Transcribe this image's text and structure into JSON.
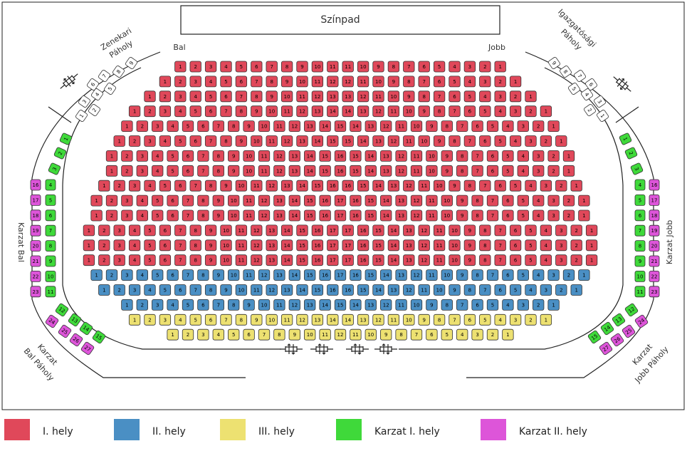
{
  "labels": {
    "stage": "Színpad",
    "left": "Bal",
    "right": "Jobb",
    "zenekari_1": "Zenekari",
    "zenekari_2": "Páholy",
    "igazgatosagi_1": "Igazgatósági",
    "igazgatosagi_2": "Páholy",
    "karzat_bal": "Karzat Bal",
    "karzat_jobb": "Karzat Jobb",
    "karzat_bal_paholy_1": "Karzat",
    "karzat_bal_paholy_2": "Bal Páholy",
    "karzat_jobb_paholy_1": "Karzat",
    "karzat_jobb_paholy_2": "Jobb Páholy"
  },
  "colors": {
    "cat1": "#e0485a",
    "cat2": "#4a8fc4",
    "cat3": "#ede171",
    "karzat1": "#3fd93a",
    "karzat2": "#dd55d9",
    "box": "#ffffff"
  },
  "legend": [
    {
      "label": "I. hely",
      "color": "#e0485a"
    },
    {
      "label": "II. hely",
      "color": "#4a8fc4"
    },
    {
      "label": "III. hely",
      "color": "#ede171"
    },
    {
      "label": "Karzat I. hely",
      "color": "#3fd93a"
    },
    {
      "label": "Karzat II. hely",
      "color": "#dd55d9"
    }
  ],
  "main_rows": [
    {
      "category": "cat1",
      "seats": 22
    },
    {
      "category": "cat1",
      "seats": 24
    },
    {
      "category": "cat1",
      "seats": 26
    },
    {
      "category": "cat1",
      "seats": 28
    },
    {
      "category": "cat1",
      "seats": 29
    },
    {
      "category": "cat1",
      "seats": 30
    },
    {
      "category": "cat1",
      "seats": 31
    },
    {
      "category": "cat1",
      "seats": 31
    },
    {
      "category": "cat1",
      "seats": 32
    },
    {
      "category": "cat1",
      "seats": 33
    },
    {
      "category": "cat1",
      "seats": 33
    },
    {
      "category": "cat1",
      "seats": 34
    },
    {
      "category": "cat1",
      "seats": 34
    },
    {
      "category": "cat1",
      "seats": 34
    },
    {
      "category": "cat2",
      "seats": 33
    },
    {
      "category": "cat2",
      "seats": 32
    },
    {
      "category": "cat2",
      "seats": 29
    },
    {
      "category": "cat3",
      "seats": 28
    },
    {
      "category": "cat3",
      "seats": 23
    }
  ],
  "zenekari_paholy": [
    {
      "seat": "1"
    },
    {
      "seat": "2"
    },
    {
      "seat": "3"
    },
    {
      "seat": "4"
    },
    {
      "seat": "5"
    },
    {
      "seat": "6"
    },
    {
      "seat": "7"
    },
    {
      "seat": "8"
    },
    {
      "seat": "9"
    }
  ],
  "igazgatosagi_paholy": [
    {
      "seat": "1"
    },
    {
      "seat": "2"
    },
    {
      "seat": "3"
    },
    {
      "seat": "4"
    },
    {
      "seat": "5"
    },
    {
      "seat": "6"
    },
    {
      "seat": "7"
    },
    {
      "seat": "8"
    },
    {
      "seat": "9"
    }
  ],
  "karzat_bal_outer": [
    "1",
    "2",
    "3"
  ],
  "karzat_bal_inner": [
    "4",
    "5",
    "6",
    "7",
    "8",
    "9",
    "10",
    "11"
  ],
  "karzat_bal_pink": [
    "16",
    "17",
    "18",
    "19",
    "20",
    "21",
    "22",
    "23"
  ],
  "karzat_bal_paholy_green": [
    "12",
    "13",
    "14",
    "15"
  ],
  "karzat_bal_paholy_pink": [
    "24",
    "25",
    "26",
    "27"
  ],
  "karzat_jobb_outer": [
    "1",
    "2",
    "3"
  ],
  "karzat_jobb_inner": [
    "4",
    "5",
    "6",
    "7",
    "8",
    "9",
    "10",
    "11"
  ],
  "karzat_jobb_pink": [
    "16",
    "17",
    "18",
    "19",
    "20",
    "21",
    "22",
    "23"
  ],
  "karzat_jobb_paholy_green": [
    "12",
    "13",
    "14",
    "15"
  ],
  "karzat_jobb_paholy_pink": [
    "24",
    "25",
    "26",
    "27"
  ]
}
